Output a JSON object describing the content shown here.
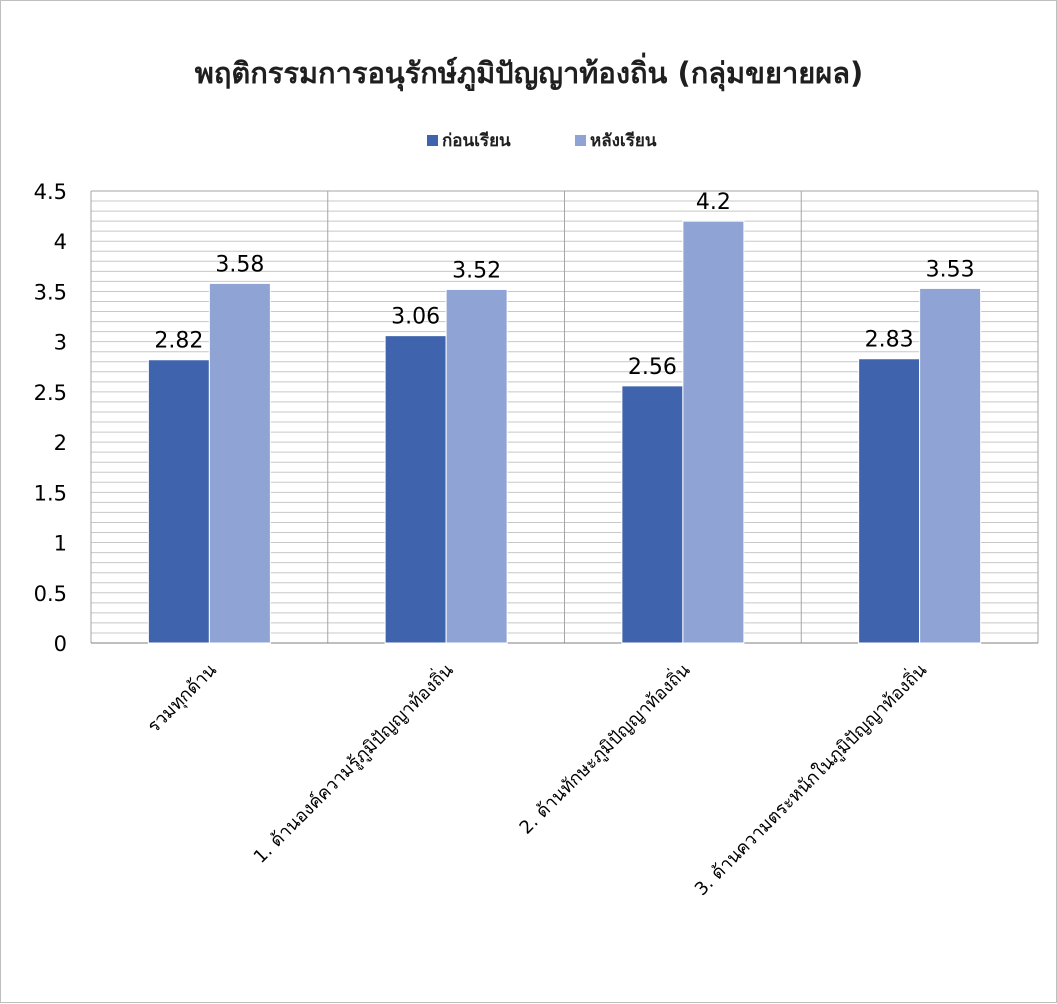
{
  "chart_data": {
    "type": "bar",
    "title": "พฤติกรรมการอนุรักษ์ภูมิปัญญาท้องถิ่น (กลุ่มขยายผล)",
    "categories": [
      "รวมทุกด้าน",
      "1. ด้านองค์ความรู้ภูมิปัญญาท้องถิ่น",
      "2. ด้านทักษะภูมิปัญญาท้องถิ่น",
      "3. ด้านความตระหนักในภูมิปัญญาท้องถิ่น"
    ],
    "series": [
      {
        "name": "ก่อนเรียน",
        "values": [
          2.82,
          3.06,
          2.56,
          2.83
        ],
        "color": "#3f64ad"
      },
      {
        "name": "หลังเรียน",
        "values": [
          3.58,
          3.52,
          4.2,
          3.53
        ],
        "color": "#8fa3d5"
      }
    ],
    "yticks": [
      "0",
      "0.5",
      "1",
      "1.5",
      "2",
      "2.5",
      "3",
      "3.5",
      "4",
      "4.5"
    ],
    "ylim": [
      0,
      4.5
    ],
    "legend_position": "top",
    "grid": true
  }
}
